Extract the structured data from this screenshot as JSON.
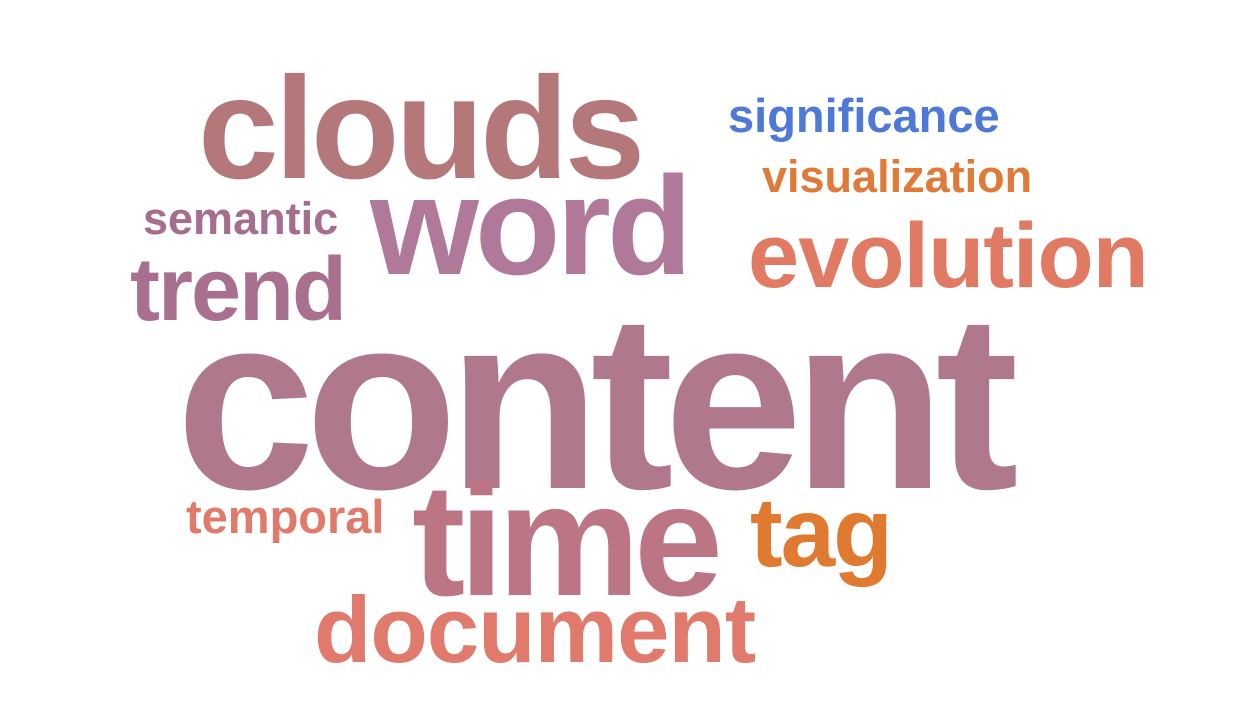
{
  "words": [
    {
      "key": "clouds",
      "text": "clouds",
      "color": "#B4787A"
    },
    {
      "key": "significance",
      "text": "significance",
      "color": "#4E79D6"
    },
    {
      "key": "visualization",
      "text": "visualization",
      "color": "#E07A38"
    },
    {
      "key": "semantic",
      "text": "semantic",
      "color": "#A66E8E"
    },
    {
      "key": "word",
      "text": "word",
      "color": "#B0799A"
    },
    {
      "key": "evolution",
      "text": "evolution",
      "color": "#E07A62"
    },
    {
      "key": "trend",
      "text": "trend",
      "color": "#A8708E"
    },
    {
      "key": "content",
      "text": "content",
      "color": "#B0788C"
    },
    {
      "key": "temporal",
      "text": "temporal",
      "color": "#E07A6A"
    },
    {
      "key": "time",
      "text": "time",
      "color": "#BB7585"
    },
    {
      "key": "tag",
      "text": "tag",
      "color": "#E07A30"
    },
    {
      "key": "document",
      "text": "document",
      "color": "#E07A6C"
    }
  ]
}
